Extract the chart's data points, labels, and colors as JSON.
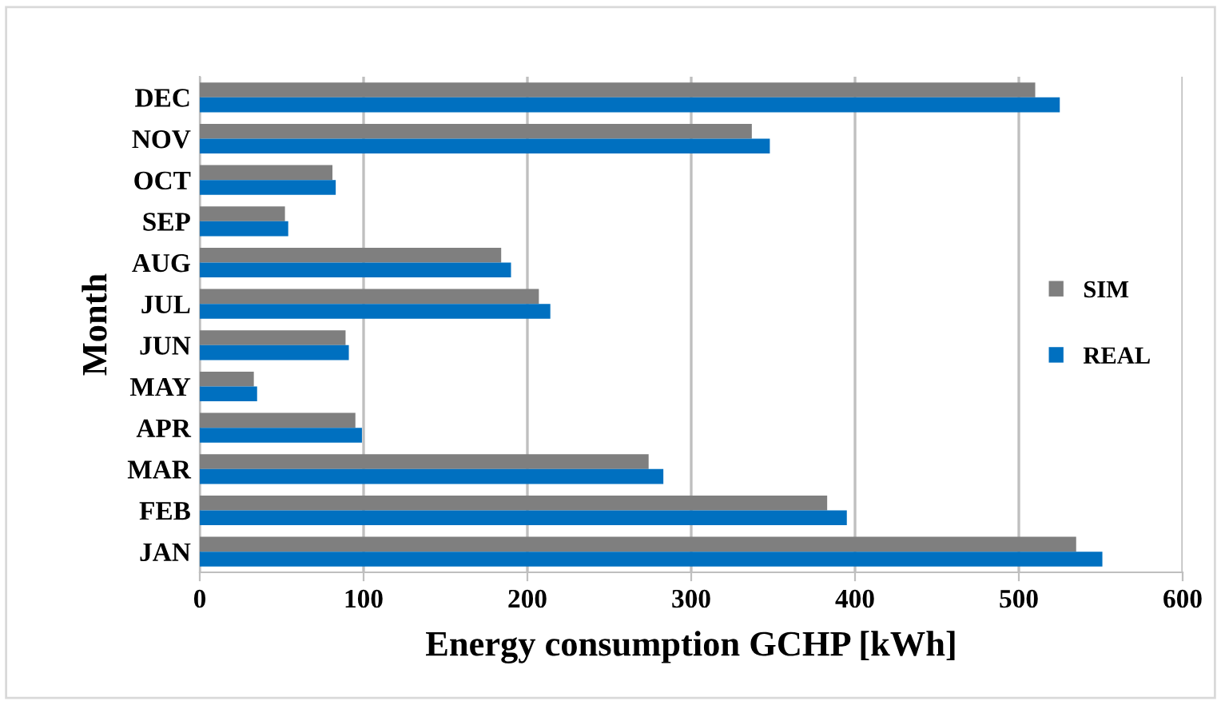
{
  "chart_data": {
    "type": "bar",
    "orientation": "horizontal",
    "xlabel": "Energy consumption GCHP [kWh]",
    "ylabel": "Month",
    "categories": [
      "DEC",
      "NOV",
      "OCT",
      "SEP",
      "AUG",
      "JUL",
      "JUN",
      "MAY",
      "APR",
      "MAR",
      "FEB",
      "JAN"
    ],
    "series": [
      {
        "name": "SIM",
        "color": "#7f7f7f",
        "values": [
          510,
          337,
          81,
          52,
          184,
          207,
          89,
          33,
          95,
          274,
          383,
          535
        ]
      },
      {
        "name": "REAL",
        "color": "#0070c0",
        "values": [
          525,
          348,
          83,
          54,
          190,
          214,
          91,
          35,
          99,
          283,
          395,
          551
        ]
      }
    ],
    "xlim": [
      0,
      600
    ],
    "xticks": [
      0,
      100,
      200,
      300,
      400,
      500,
      600
    ],
    "grid": "x",
    "legend": "right"
  }
}
